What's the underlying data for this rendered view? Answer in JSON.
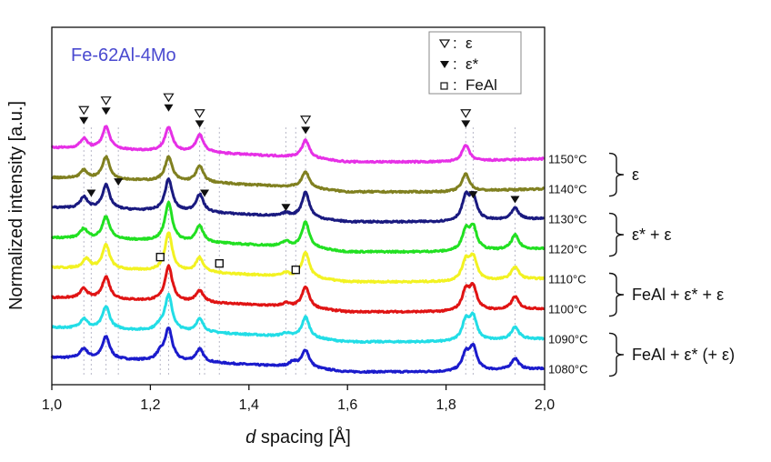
{
  "chart_data": {
    "type": "line",
    "title": "Fe-62Al-4Mo",
    "title_color": "#4a4ad0",
    "xlabel_italic": "d",
    "xlabel_rest": " spacing [Å]",
    "ylabel": "Normalized intensity [a.u.]",
    "xlim": [
      1.0,
      2.0
    ],
    "ylim": [
      0,
      11.2
    ],
    "x_ticks": [
      "1,0",
      "1,2",
      "1,4",
      "1,6",
      "1,8",
      "2,0"
    ],
    "x_tick_values": [
      1.0,
      1.2,
      1.4,
      1.6,
      1.8,
      2.0
    ],
    "grid": false,
    "peak_width": 0.009,
    "background": [
      [
        1.0,
        0.35
      ],
      [
        1.3,
        0.2
      ],
      [
        1.5,
        0.05
      ],
      [
        1.6,
        -0.1
      ],
      [
        1.8,
        -0.1
      ],
      [
        2.0,
        0.0
      ]
    ],
    "series": [
      {
        "name": "1080°C",
        "color": "#1b1bcc",
        "offset": 0.5,
        "peaks": [
          [
            1.065,
            0.3
          ],
          [
            1.11,
            0.7
          ],
          [
            1.22,
            0.2
          ],
          [
            1.237,
            1.0
          ],
          [
            1.3,
            0.4
          ],
          [
            1.49,
            0.15
          ],
          [
            1.515,
            0.55
          ],
          [
            1.84,
            0.5
          ],
          [
            1.855,
            0.7
          ],
          [
            1.94,
            0.35
          ]
        ]
      },
      {
        "name": "1090°C",
        "color": "#22dde6",
        "offset": 1.44,
        "peaks": [
          [
            1.065,
            0.3
          ],
          [
            1.11,
            0.7
          ],
          [
            1.22,
            0.15
          ],
          [
            1.237,
            1.1
          ],
          [
            1.3,
            0.4
          ],
          [
            1.475,
            0.1
          ],
          [
            1.515,
            0.65
          ],
          [
            1.84,
            0.6
          ],
          [
            1.855,
            0.7
          ],
          [
            1.94,
            0.4
          ]
        ]
      },
      {
        "name": "1100°C",
        "color": "#e01414",
        "offset": 2.38,
        "peaks": [
          [
            1.065,
            0.3
          ],
          [
            1.11,
            0.7
          ],
          [
            1.237,
            1.1
          ],
          [
            1.3,
            0.35
          ],
          [
            1.475,
            0.1
          ],
          [
            1.515,
            0.65
          ],
          [
            1.84,
            0.6
          ],
          [
            1.855,
            0.7
          ],
          [
            1.94,
            0.4
          ]
        ]
      },
      {
        "name": "1110°C",
        "color": "#f2f222",
        "offset": 3.32,
        "peaks": [
          [
            1.07,
            0.3
          ],
          [
            1.11,
            0.75
          ],
          [
            1.237,
            1.2
          ],
          [
            1.3,
            0.45
          ],
          [
            1.475,
            0.1
          ],
          [
            1.515,
            0.8
          ],
          [
            1.84,
            0.6
          ],
          [
            1.855,
            0.7
          ],
          [
            1.94,
            0.4
          ]
        ]
      },
      {
        "name": "1120°C",
        "color": "#22e022",
        "offset": 4.26,
        "peaks": [
          [
            1.065,
            0.3
          ],
          [
            1.11,
            0.7
          ],
          [
            1.237,
            1.2
          ],
          [
            1.3,
            0.5
          ],
          [
            1.475,
            0.15
          ],
          [
            1.515,
            0.8
          ],
          [
            1.84,
            0.6
          ],
          [
            1.855,
            0.7
          ],
          [
            1.94,
            0.45
          ]
        ]
      },
      {
        "name": "1130°C",
        "color": "#1a1a80",
        "offset": 5.2,
        "peaks": [
          [
            1.065,
            0.35
          ],
          [
            1.11,
            0.75
          ],
          [
            1.237,
            1.0
          ],
          [
            1.3,
            0.55
          ],
          [
            1.475,
            0.1
          ],
          [
            1.515,
            0.8
          ],
          [
            1.84,
            0.7
          ],
          [
            1.855,
            0.7
          ],
          [
            1.94,
            0.35
          ]
        ]
      },
      {
        "name": "1140°C",
        "color": "#808020",
        "offset": 6.14,
        "peaks": [
          [
            1.065,
            0.25
          ],
          [
            1.11,
            0.7
          ],
          [
            1.237,
            0.75
          ],
          [
            1.3,
            0.5
          ],
          [
            1.515,
            0.5
          ],
          [
            1.84,
            0.55
          ]
        ]
      },
      {
        "name": "1150°C",
        "color": "#e630e6",
        "offset": 7.08,
        "peaks": [
          [
            1.065,
            0.3
          ],
          [
            1.11,
            0.7
          ],
          [
            1.237,
            0.75
          ],
          [
            1.3,
            0.55
          ],
          [
            1.515,
            0.55
          ],
          [
            1.84,
            0.5
          ]
        ]
      }
    ],
    "markers": {
      "epsilon_open": [
        [
          1.065,
          8.6
        ],
        [
          1.11,
          8.9
        ],
        [
          1.237,
          9.0
        ],
        [
          1.3,
          8.5
        ],
        [
          1.515,
          8.3
        ],
        [
          1.84,
          8.5
        ]
      ],
      "epsilon_star_filled": [
        [
          1.065,
          8.27
        ],
        [
          1.11,
          8.57
        ],
        [
          1.237,
          8.67
        ],
        [
          1.3,
          8.17
        ],
        [
          1.515,
          7.97
        ],
        [
          1.84,
          8.17
        ],
        [
          1.08,
          6.0
        ],
        [
          1.135,
          6.35
        ],
        [
          1.31,
          6.0
        ],
        [
          1.475,
          5.55
        ],
        [
          1.855,
          5.95
        ],
        [
          1.94,
          5.8
        ]
      ],
      "feal_square": [
        [
          1.22,
          4.0
        ],
        [
          1.34,
          3.8
        ],
        [
          1.495,
          3.6
        ]
      ]
    },
    "legend": {
      "position": "top-right",
      "items": [
        {
          "symbol": "open-triangle",
          "label": "ε"
        },
        {
          "symbol": "filled-triangle",
          "label": "ε*"
        },
        {
          "symbol": "open-square",
          "label": "FeAl"
        }
      ],
      "separator": ":"
    },
    "phase_groups": [
      {
        "label": "ε",
        "series": [
          "1150°C",
          "1140°C"
        ]
      },
      {
        "label": "ε* + ε",
        "series": [
          "1130°C",
          "1120°C"
        ]
      },
      {
        "label": "FeAl + ε* + ε",
        "series": [
          "1110°C",
          "1100°C"
        ]
      },
      {
        "label": "FeAl + ε* (+ ε)",
        "series": [
          "1090°C",
          "1080°C"
        ]
      }
    ]
  }
}
